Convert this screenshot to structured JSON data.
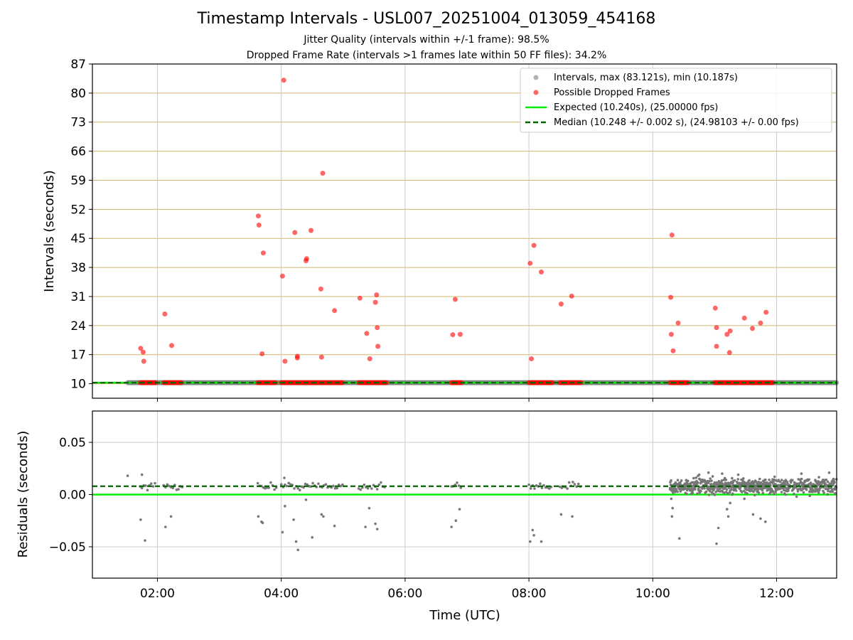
{
  "chart_data": [
    {
      "type": "scatter",
      "title": "Timestamp Intervals - USL007_20251004_013059_454168",
      "subtitle_1": "Jitter Quality (intervals within +/-1 frame): 98.5%",
      "subtitle_2": "Dropped Frame Rate (intervals >1 frames late within 50 FF files): 34.2%",
      "xlabel": "",
      "ylabel": "Intervals (seconds)",
      "xlim": [
        0.95,
        12.97
      ],
      "ylim": [
        6.5,
        87
      ],
      "yticks": [
        10,
        17,
        24,
        31,
        38,
        45,
        52,
        59,
        66,
        73,
        80,
        87
      ],
      "xticks": [
        2,
        4,
        6,
        8,
        10,
        12
      ],
      "legend_position": "top-right",
      "legend": {
        "intervals": "Intervals, max (83.121s), min (10.187s)",
        "dropped": "Possible Dropped Frames",
        "expected": "Expected (10.240s), (25.00000 fps)",
        "median": "Median (10.248 +/- 0.002 s), (24.98103 +/- 0.00 fps)"
      },
      "expected_value": 10.24,
      "median_value": 10.248,
      "intervals_segments": [
        [
          1.52,
          12.97
        ]
      ],
      "dropped_bands": [
        [
          1.72,
          1.98
        ],
        [
          2.1,
          2.4
        ],
        [
          3.62,
          3.92
        ],
        [
          4.0,
          5.0
        ],
        [
          5.25,
          5.7
        ],
        [
          6.75,
          6.92
        ],
        [
          8.0,
          8.38
        ],
        [
          8.5,
          8.85
        ],
        [
          10.28,
          10.58
        ],
        [
          11.0,
          11.45
        ],
        [
          11.45,
          11.95
        ]
      ],
      "dropped_points": [
        [
          1.73,
          18.5
        ],
        [
          1.77,
          17.6
        ],
        [
          1.78,
          15.4
        ],
        [
          2.12,
          26.8
        ],
        [
          2.23,
          19.2
        ],
        [
          3.63,
          50.4
        ],
        [
          3.64,
          48.2
        ],
        [
          3.69,
          17.2
        ],
        [
          3.71,
          41.5
        ],
        [
          4.02,
          35.9
        ],
        [
          4.04,
          83.1
        ],
        [
          4.06,
          15.4
        ],
        [
          4.22,
          46.4
        ],
        [
          4.26,
          16.2
        ],
        [
          4.26,
          16.6
        ],
        [
          4.4,
          39.6
        ],
        [
          4.41,
          40.1
        ],
        [
          4.48,
          46.9
        ],
        [
          4.64,
          32.8
        ],
        [
          4.65,
          16.4
        ],
        [
          4.67,
          60.7
        ],
        [
          4.86,
          27.6
        ],
        [
          5.27,
          30.6
        ],
        [
          5.38,
          22.1
        ],
        [
          5.43,
          16.0
        ],
        [
          5.52,
          29.6
        ],
        [
          5.54,
          31.4
        ],
        [
          5.55,
          23.5
        ],
        [
          5.56,
          19.0
        ],
        [
          6.77,
          21.8
        ],
        [
          6.81,
          30.3
        ],
        [
          6.89,
          21.9
        ],
        [
          8.02,
          39.0
        ],
        [
          8.04,
          16.0
        ],
        [
          8.08,
          43.3
        ],
        [
          8.2,
          36.9
        ],
        [
          8.52,
          29.2
        ],
        [
          8.69,
          31.1
        ],
        [
          10.29,
          30.8
        ],
        [
          10.3,
          21.9
        ],
        [
          10.31,
          45.8
        ],
        [
          10.33,
          17.9
        ],
        [
          10.41,
          24.6
        ],
        [
          11.01,
          28.2
        ],
        [
          11.03,
          23.5
        ],
        [
          11.03,
          19.0
        ],
        [
          11.2,
          21.9
        ],
        [
          11.24,
          17.5
        ],
        [
          11.25,
          22.7
        ],
        [
          11.48,
          25.8
        ],
        [
          11.61,
          23.3
        ],
        [
          11.74,
          24.6
        ],
        [
          11.83,
          27.2
        ]
      ]
    },
    {
      "type": "scatter",
      "xlabel": "Time (UTC)",
      "ylabel": "Residuals (seconds)",
      "xlim": [
        0.95,
        12.97
      ],
      "ylim": [
        -0.08,
        0.08
      ],
      "yticks": [
        -0.05,
        0.0,
        0.05
      ],
      "ytick_labels": [
        "−0.05",
        "0.00",
        "0.05"
      ],
      "xticks": [
        2,
        4,
        6,
        8,
        10,
        12
      ],
      "xtick_labels": [
        "02:00",
        "04:00",
        "06:00",
        "08:00",
        "10:00",
        "12:00"
      ],
      "expected_residual": 0.0,
      "median_residual": 0.008,
      "residual_outliers": [
        [
          1.52,
          0.018
        ],
        [
          1.73,
          -0.024
        ],
        [
          1.75,
          0.019
        ],
        [
          1.8,
          -0.044
        ],
        [
          2.13,
          -0.031
        ],
        [
          2.22,
          -0.021
        ],
        [
          3.63,
          -0.021
        ],
        [
          3.68,
          -0.026
        ],
        [
          3.7,
          -0.027
        ],
        [
          4.02,
          -0.036
        ],
        [
          4.06,
          -0.011
        ],
        [
          4.05,
          0.016
        ],
        [
          4.2,
          -0.024
        ],
        [
          4.24,
          -0.045
        ],
        [
          4.27,
          -0.053
        ],
        [
          4.4,
          -0.005
        ],
        [
          4.5,
          -0.041
        ],
        [
          4.65,
          -0.019
        ],
        [
          4.68,
          -0.021
        ],
        [
          4.86,
          -0.03
        ],
        [
          5.36,
          -0.031
        ],
        [
          5.42,
          -0.013
        ],
        [
          5.52,
          -0.028
        ],
        [
          5.55,
          -0.033
        ],
        [
          6.75,
          -0.031
        ],
        [
          6.82,
          -0.025
        ],
        [
          6.88,
          -0.014
        ],
        [
          8.02,
          -0.045
        ],
        [
          8.06,
          -0.034
        ],
        [
          8.08,
          -0.039
        ],
        [
          8.2,
          -0.045
        ],
        [
          8.52,
          -0.019
        ],
        [
          8.7,
          -0.021
        ],
        [
          10.3,
          -0.004
        ],
        [
          10.32,
          -0.013
        ],
        [
          10.31,
          -0.021
        ],
        [
          10.43,
          -0.042
        ],
        [
          11.03,
          -0.047
        ],
        [
          11.06,
          -0.032
        ],
        [
          11.2,
          -0.014
        ],
        [
          11.25,
          -0.008
        ],
        [
          11.22,
          -0.021
        ],
        [
          11.48,
          -0.004
        ],
        [
          11.62,
          -0.019
        ],
        [
          11.74,
          -0.023
        ],
        [
          11.82,
          -0.026
        ],
        [
          10.75,
          0.019
        ],
        [
          10.9,
          0.021
        ],
        [
          11.38,
          0.019
        ],
        [
          12.4,
          0.02
        ],
        [
          12.85,
          0.021
        ],
        [
          11.12,
          0.02
        ]
      ]
    }
  ]
}
